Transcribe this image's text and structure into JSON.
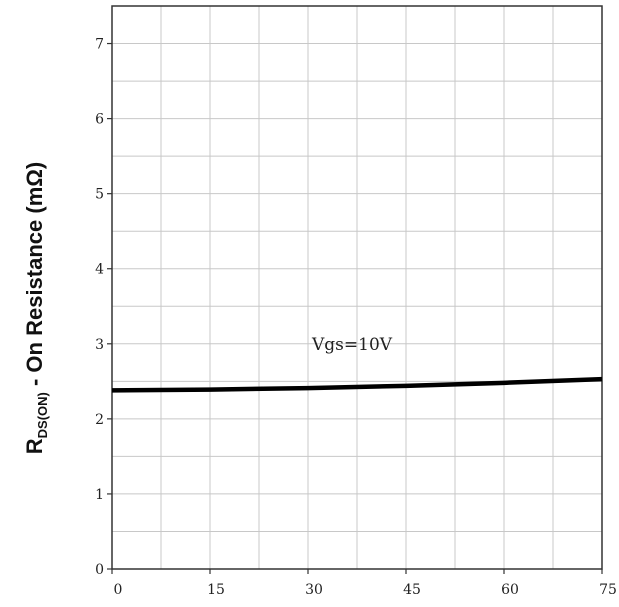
{
  "chart_data": {
    "type": "line",
    "title": "",
    "xlabel": "",
    "ylabel": {
      "main": "R",
      "subscript": "DS(ON)",
      "rest": " - On Resistance (mΩ)"
    },
    "xlim": [
      0,
      75
    ],
    "ylim": [
      0,
      7.5
    ],
    "x_ticks": [
      "0",
      "15",
      "30",
      "45",
      "60",
      "75"
    ],
    "y_ticks": [
      "0",
      "1",
      "2",
      "3",
      "4",
      "5",
      "6",
      "7"
    ],
    "x_minor_step": 7.5,
    "y_minor_step": 0.5,
    "grid": true,
    "series": [
      {
        "name": "Vgs=10V",
        "x": [
          0,
          15,
          30,
          45,
          60,
          75
        ],
        "y": [
          2.38,
          2.39,
          2.41,
          2.44,
          2.48,
          2.53
        ]
      }
    ],
    "colors": {
      "line": "#000000",
      "grid": "#c8c8c8",
      "axis": "#333333"
    }
  }
}
